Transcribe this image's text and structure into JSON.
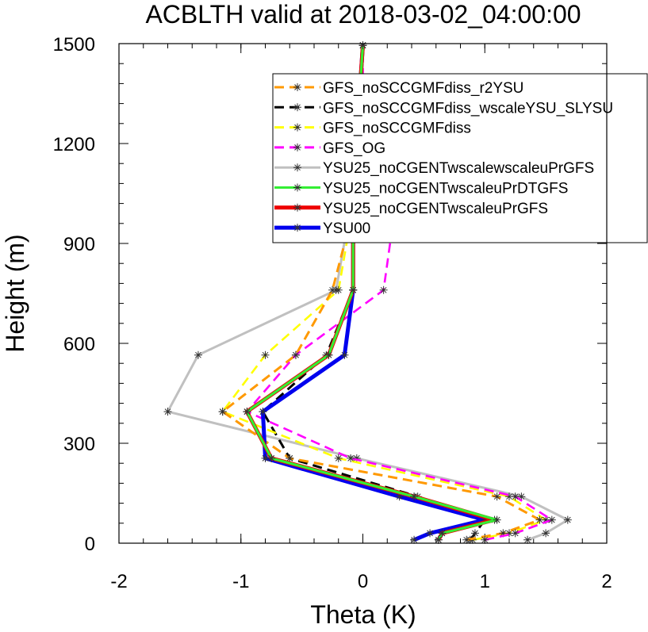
{
  "chart_data": {
    "type": "line",
    "title": "ACBLTH valid at 2018-03-02_04:00:00",
    "xlabel": "Theta (K)",
    "ylabel": "Height (m)",
    "xlim": [
      -2,
      2
    ],
    "ylim": [
      0,
      1500
    ],
    "xticks": [
      "-2",
      "-1",
      "0",
      "1",
      "2"
    ],
    "yticks": [
      "0",
      "300",
      "600",
      "900",
      "1200",
      "1500"
    ],
    "legend_position": "top-right",
    "y": [
      10,
      30,
      70,
      140,
      255,
      395,
      565,
      760,
      970,
      1220,
      1495
    ],
    "series": [
      {
        "name": "GFS_noSCCGMFdiss_r2YSU",
        "color": "#ff9900",
        "dash": "dashed",
        "x": [
          0.85,
          1.15,
          1.45,
          1.1,
          -0.6,
          -1.15,
          -0.55,
          -0.25,
          -0.1,
          -0.05,
          0.0
        ]
      },
      {
        "name": "GFS_noSCCGMFdiss_wscaleYSU_SLYSU",
        "color": "#000000",
        "dash": "dashed",
        "x": [
          0.88,
          0.92,
          1.0,
          0.45,
          -0.6,
          -0.82,
          -0.3,
          -0.08,
          -0.08,
          -0.05,
          0.0
        ]
      },
      {
        "name": "GFS_noSCCGMFdiss",
        "color": "#ffff00",
        "dash": "dashed",
        "x": [
          0.9,
          1.2,
          1.5,
          1.2,
          -0.2,
          -1.15,
          -0.8,
          -0.2,
          -0.1,
          -0.05,
          0.0
        ]
      },
      {
        "name": "GFS_OG",
        "color": "#ff00ff",
        "dash": "dashed",
        "x": [
          1.0,
          1.25,
          1.55,
          1.25,
          -0.1,
          -0.95,
          -0.55,
          0.17,
          0.25,
          0.0,
          0.0
        ]
      },
      {
        "name": "YSU25_noCGENTwscalewscaleuPrGFS",
        "color": "#c0c0c0",
        "dash": "solid",
        "x": [
          1.35,
          1.5,
          1.68,
          1.3,
          -0.05,
          -1.6,
          -1.35,
          -0.22,
          -0.12,
          -0.05,
          0.0
        ]
      },
      {
        "name": "YSU25_noCGENTwscaleuPrDTGFS",
        "color": "#33ee33",
        "dash": "solid",
        "x": [
          0.62,
          0.65,
          1.1,
          0.42,
          -0.75,
          -0.95,
          -0.28,
          -0.08,
          -0.08,
          -0.05,
          0.0
        ]
      },
      {
        "name": "YSU25_noCGENTwscaleuPrGFS",
        "color": "#ee0000",
        "dash": "solid",
        "x": [
          0.62,
          0.65,
          1.08,
          0.42,
          -0.75,
          -0.95,
          -0.28,
          -0.08,
          -0.08,
          -0.05,
          0.0
        ]
      },
      {
        "name": "YSU00",
        "color": "#0000ee",
        "dash": "solid",
        "x": [
          0.42,
          0.55,
          1.0,
          0.3,
          -0.8,
          -0.82,
          -0.15,
          -0.08,
          -0.08,
          -0.05,
          0.0
        ]
      }
    ]
  }
}
